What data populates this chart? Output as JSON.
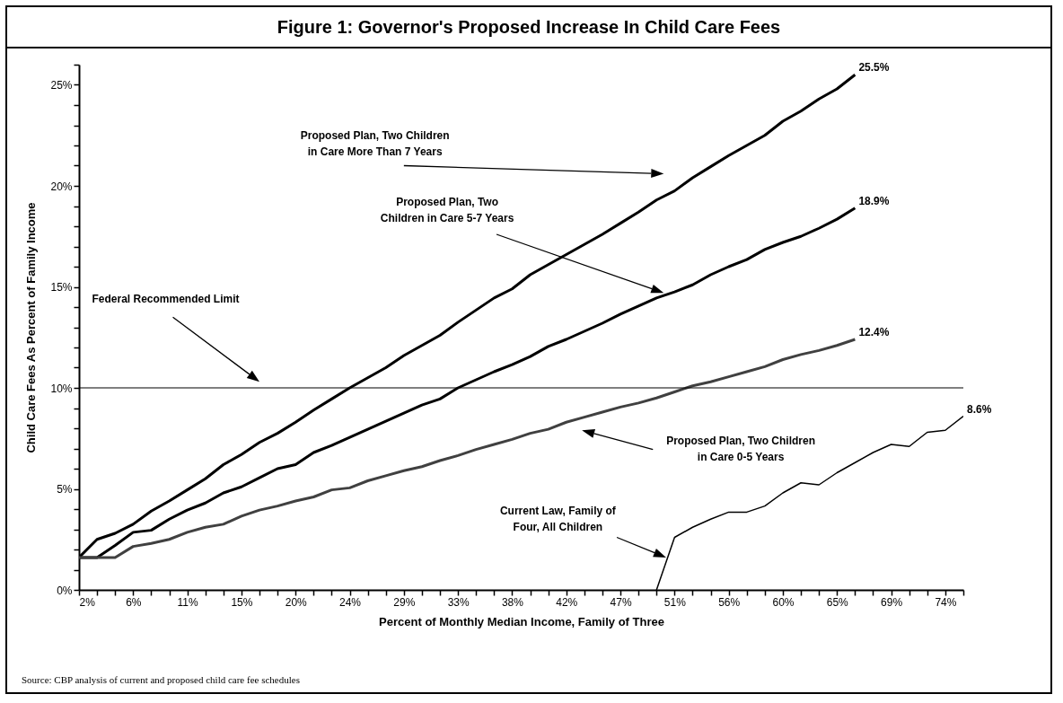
{
  "chart_data": {
    "type": "line",
    "title": "Figure 1: Governor's Proposed Increase In Child Care Fees",
    "xlabel": "Percent of Monthly Median Income, Family of Three",
    "ylabel": "Child Care Fees As Percent of Family Income",
    "xlim": [
      2,
      75.5
    ],
    "ylim": [
      0,
      26
    ],
    "xticks": [
      {
        "value": 2,
        "label": "2%"
      },
      {
        "value": 3.5,
        "label": null
      },
      {
        "value": 5,
        "label": null
      },
      {
        "value": 6.5,
        "label": "6%"
      },
      {
        "value": 8,
        "label": null
      },
      {
        "value": 9.5,
        "label": null
      },
      {
        "value": 11,
        "label": "11%"
      },
      {
        "value": 12.5,
        "label": null
      },
      {
        "value": 14,
        "label": null
      },
      {
        "value": 15.5,
        "label": "15%"
      },
      {
        "value": 17,
        "label": null
      },
      {
        "value": 18.5,
        "label": null
      },
      {
        "value": 20,
        "label": "20%"
      },
      {
        "value": 21.5,
        "label": null
      },
      {
        "value": 23,
        "label": null
      },
      {
        "value": 24.5,
        "label": "24%"
      },
      {
        "value": 26,
        "label": null
      },
      {
        "value": 27.5,
        "label": null
      },
      {
        "value": 29,
        "label": "29%"
      },
      {
        "value": 30.5,
        "label": null
      },
      {
        "value": 32,
        "label": null
      },
      {
        "value": 33.5,
        "label": "33%"
      },
      {
        "value": 35,
        "label": null
      },
      {
        "value": 36.5,
        "label": null
      },
      {
        "value": 38,
        "label": "38%"
      },
      {
        "value": 39.5,
        "label": null
      },
      {
        "value": 41,
        "label": null
      },
      {
        "value": 42.5,
        "label": "42%"
      },
      {
        "value": 44,
        "label": null
      },
      {
        "value": 45.5,
        "label": null
      },
      {
        "value": 47,
        "label": "47%"
      },
      {
        "value": 48.5,
        "label": null
      },
      {
        "value": 50,
        "label": null
      },
      {
        "value": 51.5,
        "label": "51%"
      },
      {
        "value": 53,
        "label": null
      },
      {
        "value": 54.5,
        "label": null
      },
      {
        "value": 56,
        "label": "56%"
      },
      {
        "value": 57.5,
        "label": null
      },
      {
        "value": 59,
        "label": null
      },
      {
        "value": 60.5,
        "label": "60%"
      },
      {
        "value": 62,
        "label": null
      },
      {
        "value": 63.5,
        "label": null
      },
      {
        "value": 65,
        "label": "65%"
      },
      {
        "value": 66.5,
        "label": null
      },
      {
        "value": 68,
        "label": null
      },
      {
        "value": 69.5,
        "label": "69%"
      },
      {
        "value": 71,
        "label": null
      },
      {
        "value": 72.5,
        "label": null
      },
      {
        "value": 74,
        "label": "74%"
      },
      {
        "value": 75.5,
        "label": null
      }
    ],
    "yticks": [
      {
        "value": 0,
        "label": "0%"
      },
      {
        "value": 1,
        "label": null
      },
      {
        "value": 2,
        "label": null
      },
      {
        "value": 3,
        "label": null
      },
      {
        "value": 4,
        "label": null
      },
      {
        "value": 5,
        "label": "5%"
      },
      {
        "value": 6,
        "label": null
      },
      {
        "value": 7,
        "label": null
      },
      {
        "value": 8,
        "label": null
      },
      {
        "value": 9,
        "label": null
      },
      {
        "value": 10,
        "label": "10%"
      },
      {
        "value": 11,
        "label": null
      },
      {
        "value": 12,
        "label": null
      },
      {
        "value": 13,
        "label": null
      },
      {
        "value": 14,
        "label": null
      },
      {
        "value": 15,
        "label": "15%"
      },
      {
        "value": 16,
        "label": null
      },
      {
        "value": 17,
        "label": null
      },
      {
        "value": 18,
        "label": null
      },
      {
        "value": 19,
        "label": null
      },
      {
        "value": 20,
        "label": "20%"
      },
      {
        "value": 21,
        "label": null
      },
      {
        "value": 22,
        "label": null
      },
      {
        "value": 23,
        "label": null
      },
      {
        "value": 24,
        "label": null
      },
      {
        "value": 25,
        "label": "25%"
      },
      {
        "value": 26,
        "label": null
      }
    ],
    "series": [
      {
        "color": "#000000",
        "x": [
          2,
          3.5,
          5,
          6.5,
          8,
          9.5,
          11,
          12.5,
          14,
          15.5,
          17,
          18.5,
          20,
          21.5,
          23,
          24.5,
          26,
          27.5,
          29,
          30.5,
          32,
          33.5,
          35,
          36.5,
          38,
          39.5,
          41,
          42.5,
          44,
          45.5,
          47,
          48.5,
          50,
          51.5,
          53,
          54.5,
          56,
          57.5,
          59,
          60.5,
          62,
          63.5,
          65,
          66.5
        ],
        "values": [
          1.6,
          2.5,
          2.8,
          3.25,
          3.9,
          4.4,
          4.95,
          5.5,
          6.2,
          6.7,
          7.3,
          7.75,
          8.3,
          8.9,
          9.45,
          10.0,
          10.5,
          11.0,
          11.6,
          12.1,
          12.6,
          13.25,
          13.85,
          14.45,
          14.9,
          15.6,
          16.1,
          16.6,
          17.1,
          17.6,
          18.15,
          18.7,
          19.3,
          19.75,
          20.4,
          20.95,
          21.5,
          22.0,
          22.5,
          23.2,
          23.7,
          24.3,
          24.8,
          25.5
        ],
        "value_labels": [
          null,
          null,
          null,
          null,
          null,
          null,
          null,
          null,
          null,
          null,
          null,
          null,
          null,
          null,
          null,
          null,
          null,
          null,
          null,
          null,
          null,
          null,
          null,
          null,
          null,
          null,
          null,
          null,
          null,
          null,
          null,
          null,
          null,
          null,
          null,
          null,
          null,
          null,
          null,
          null,
          null,
          null,
          null,
          "25.5%"
        ]
      },
      {
        "color": "#000000",
        "x": [
          2,
          3.5,
          5,
          6.5,
          8,
          9.5,
          11,
          12.5,
          14,
          15.5,
          17,
          18.5,
          20,
          21.5,
          23,
          24.5,
          26,
          27.5,
          29,
          30.5,
          32,
          33.5,
          35,
          36.5,
          38,
          39.5,
          41,
          42.5,
          44,
          45.5,
          47,
          48.5,
          50,
          51.5,
          53,
          54.5,
          56,
          57.5,
          59,
          60.5,
          62,
          63.5,
          65,
          66.5
        ],
        "values": [
          1.6,
          1.6,
          2.2,
          2.85,
          2.95,
          3.5,
          3.95,
          4.3,
          4.8,
          5.1,
          5.55,
          6.0,
          6.2,
          6.8,
          7.15,
          7.55,
          7.95,
          8.35,
          8.75,
          9.15,
          9.45,
          10.0,
          10.4,
          10.8,
          11.15,
          11.55,
          12.05,
          12.4,
          12.8,
          13.2,
          13.65,
          14.05,
          14.45,
          14.75,
          15.1,
          15.6,
          16.0,
          16.35,
          16.85,
          17.2,
          17.5,
          17.9,
          18.35,
          18.9
        ],
        "value_labels": [
          null,
          null,
          null,
          null,
          null,
          null,
          null,
          null,
          null,
          null,
          null,
          null,
          null,
          null,
          null,
          null,
          null,
          null,
          null,
          null,
          null,
          null,
          null,
          null,
          null,
          null,
          null,
          null,
          null,
          null,
          null,
          null,
          null,
          null,
          null,
          null,
          null,
          null,
          null,
          null,
          null,
          null,
          null,
          "18.9%"
        ]
      },
      {
        "color": "#404040",
        "x": [
          2,
          3.5,
          5,
          6.5,
          8,
          9.5,
          11,
          12.5,
          14,
          15.5,
          17,
          18.5,
          20,
          21.5,
          23,
          24.5,
          26,
          27.5,
          29,
          30.5,
          32,
          33.5,
          35,
          36.5,
          38,
          39.5,
          41,
          42.5,
          44,
          45.5,
          47,
          48.5,
          50,
          51.5,
          53,
          54.5,
          56,
          57.5,
          59,
          60.5,
          62,
          63.5,
          65,
          66.5
        ],
        "values": [
          1.6,
          1.6,
          1.6,
          2.15,
          2.3,
          2.5,
          2.85,
          3.1,
          3.25,
          3.65,
          3.95,
          4.15,
          4.4,
          4.6,
          4.95,
          5.05,
          5.4,
          5.65,
          5.9,
          6.1,
          6.4,
          6.65,
          6.95,
          7.2,
          7.45,
          7.75,
          7.95,
          8.3,
          8.55,
          8.8,
          9.05,
          9.25,
          9.5,
          9.8,
          10.1,
          10.3,
          10.55,
          10.8,
          11.05,
          11.4,
          11.65,
          11.85,
          12.1,
          12.4
        ],
        "value_labels": [
          null,
          null,
          null,
          null,
          null,
          null,
          null,
          null,
          null,
          null,
          null,
          null,
          null,
          null,
          null,
          null,
          null,
          null,
          null,
          null,
          null,
          null,
          null,
          null,
          null,
          null,
          null,
          null,
          null,
          null,
          null,
          null,
          null,
          null,
          null,
          null,
          null,
          null,
          null,
          null,
          null,
          null,
          null,
          "12.4%"
        ]
      },
      {
        "color": "#000000",
        "x": [
          50,
          51.5,
          53,
          54.5,
          56,
          57.5,
          59,
          60.5,
          62,
          63.5,
          65,
          66.5,
          68,
          69.5,
          71,
          72.5,
          74,
          75.5
        ],
        "values": [
          0,
          2.6,
          3.1,
          3.5,
          3.85,
          3.85,
          4.15,
          4.8,
          5.3,
          5.2,
          5.8,
          6.3,
          6.8,
          7.2,
          7.1,
          7.8,
          7.9,
          8.6
        ],
        "value_labels": [
          null,
          null,
          null,
          null,
          null,
          null,
          null,
          null,
          null,
          null,
          null,
          null,
          null,
          null,
          null,
          null,
          null,
          "8.6%"
        ]
      }
    ],
    "ref_lines": [
      {
        "axis": "y",
        "value": 10,
        "label": "Federal Recommended Limit",
        "color": "#000000"
      }
    ],
    "annotations": [
      "Proposed Plan, Two Children\nin Care More Than 7 Years",
      "Proposed Plan, Two\nChildren in Care 5-7 Years",
      "Proposed Plan, Two Children\nin Care 0-5 Years",
      "Current Law, Family of\nFour, All Children",
      "Source: CBP analysis of current and proposed child care fee schedules"
    ]
  }
}
